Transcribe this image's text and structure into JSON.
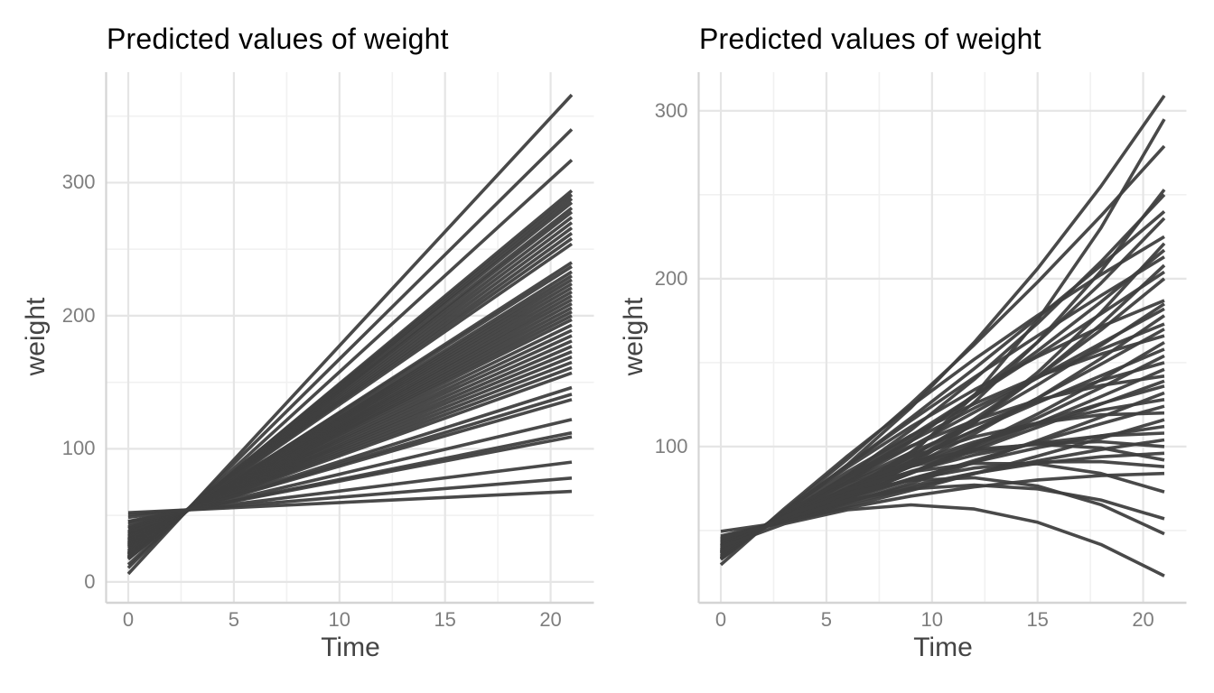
{
  "styles": {
    "background": "#ffffff",
    "line_color": "#3f3f3f",
    "grid_major_color": "#e5e5e5",
    "grid_minor_color": "#f1f1f1",
    "axis_line_color": "#d4d4d4",
    "tick_label_color": "#7e7e7e",
    "axis_title_color": "#444444",
    "title_color": "#000000"
  },
  "chart_data": [
    {
      "type": "line",
      "title": "Predicted values of weight",
      "xlabel": "Time",
      "ylabel": "weight",
      "legend": "none",
      "grid": "on",
      "x_ticks": [
        0,
        5,
        10,
        15,
        20
      ],
      "x_minor": [
        2.5,
        7.5,
        12.5,
        17.5
      ],
      "y_ticks": [
        0,
        100,
        200,
        300
      ],
      "y_minor": [
        50,
        150,
        250,
        350
      ],
      "xlim": [
        -1.05,
        22.05
      ],
      "ylim": [
        -15,
        383
      ],
      "x": [
        0,
        21
      ],
      "series": [
        [
          6,
          366
        ],
        [
          10.5,
          340
        ],
        [
          13,
          317
        ],
        [
          17,
          294
        ],
        [
          18,
          291
        ],
        [
          17.5,
          288
        ],
        [
          19,
          285
        ],
        [
          18.5,
          281
        ],
        [
          20,
          278
        ],
        [
          20.5,
          274
        ],
        [
          21,
          270
        ],
        [
          21.5,
          266
        ],
        [
          22,
          262
        ],
        [
          23,
          258
        ],
        [
          23.5,
          254
        ],
        [
          25,
          240
        ],
        [
          26.5,
          237
        ],
        [
          26,
          233
        ],
        [
          27,
          230
        ],
        [
          27.5,
          227
        ],
        [
          28,
          224
        ],
        [
          28.5,
          221
        ],
        [
          29,
          218
        ],
        [
          29,
          215
        ],
        [
          30,
          212
        ],
        [
          30,
          209
        ],
        [
          31,
          206
        ],
        [
          31,
          203
        ],
        [
          31.5,
          200
        ],
        [
          32,
          197
        ],
        [
          32.5,
          193
        ],
        [
          33,
          189
        ],
        [
          34,
          185
        ],
        [
          34.5,
          181
        ],
        [
          35,
          177
        ],
        [
          36,
          173
        ],
        [
          36.5,
          169
        ],
        [
          37,
          165
        ],
        [
          37.5,
          161
        ],
        [
          38,
          157
        ],
        [
          40,
          146
        ],
        [
          40.5,
          141
        ],
        [
          41.5,
          137
        ],
        [
          43.5,
          122
        ],
        [
          45,
          112
        ],
        [
          45.5,
          109
        ],
        [
          48.5,
          90
        ],
        [
          50.5,
          78
        ],
        [
          52,
          68
        ]
      ]
    },
    {
      "type": "line",
      "title": "Predicted values of weight",
      "xlabel": "Time",
      "ylabel": "weight",
      "legend": "none",
      "grid": "on",
      "x_ticks": [
        0,
        5,
        10,
        15,
        20
      ],
      "x_minor": [
        2.5,
        7.5,
        12.5,
        17.5
      ],
      "y_ticks": [
        100,
        200,
        300
      ],
      "y_minor": [
        50,
        150,
        250
      ],
      "xlim": [
        -1.05,
        22.05
      ],
      "ylim": [
        7.5,
        323
      ],
      "x": [
        0,
        3,
        6,
        9,
        12,
        15,
        18,
        21
      ],
      "series": [
        [
          36.7,
          60.5,
          89.3,
          123.1,
          162.1,
          206.0,
          255.0,
          309
        ],
        [
          49.5,
          54.9,
          70.2,
          95.3,
          130.4,
          175.4,
          230.2,
          295
        ],
        [
          33.2,
          61.8,
          92.6,
          125.6,
          160.7,
          198.0,
          237.4,
          279
        ],
        [
          45.5,
          56.3,
          73.3,
          96.7,
          126.3,
          162.3,
          204.5,
          253
        ],
        [
          38.7,
          59.2,
          82.9,
          109.8,
          140.0,
          173.4,
          210.1,
          250
        ],
        [
          34.3,
          61.0,
          88.6,
          117.1,
          146.4,
          176.7,
          207.8,
          240
        ],
        [
          41.0,
          58.1,
          78.7,
          103.0,
          130.8,
          162.2,
          197.3,
          236
        ],
        [
          29.6,
          62.9,
          94.4,
          124.1,
          152.0,
          178.1,
          202.4,
          225
        ],
        [
          46.8,
          55.5,
          69.6,
          89.0,
          113.9,
          144.2,
          179.8,
          221
        ],
        [
          38.8,
          59.2,
          80.7,
          104.4,
          129.8,
          157.0,
          186.1,
          217
        ],
        [
          33.0,
          61.4,
          88.9,
          115.4,
          141.2,
          166.0,
          189.9,
          213
        ],
        [
          44.8,
          56.3,
          71.6,
          91.0,
          114.3,
          141.6,
          172.8,
          208
        ],
        [
          36.9,
          59.6,
          82.8,
          106.3,
          130.2,
          154.5,
          179.0,
          204
        ],
        [
          42.7,
          57.1,
          74.2,
          94.0,
          116.4,
          141.6,
          169.4,
          200
        ],
        [
          32.7,
          61.3,
          87.6,
          111.8,
          133.8,
          153.6,
          171.4,
          187
        ],
        [
          41.3,
          57.6,
          75.2,
          94.3,
          114.8,
          136.7,
          160.2,
          185
        ],
        [
          38.3,
          58.8,
          79.4,
          99.9,
          120.4,
          140.9,
          161.5,
          182
        ],
        [
          43.8,
          56.5,
          71.3,
          88.3,
          107.5,
          128.8,
          152.4,
          178
        ],
        [
          35.9,
          59.8,
          82.3,
          103.3,
          122.9,
          141.1,
          157.8,
          173
        ],
        [
          41.7,
          57.3,
          73.8,
          91.3,
          109.6,
          128.8,
          149.0,
          170
        ],
        [
          33.7,
          60.7,
          85.0,
          106.6,
          125.5,
          141.7,
          155.1,
          166
        ],
        [
          44.6,
          56.0,
          69.2,
          84.1,
          100.9,
          119.4,
          139.8,
          162
        ],
        [
          40.0,
          57.9,
          75.5,
          92.7,
          109.6,
          126.1,
          142.2,
          158
        ],
        [
          43.8,
          56.3,
          69.9,
          84.5,
          100.3,
          117.1,
          135.1,
          154
        ],
        [
          37.5,
          59.0,
          78.6,
          96.5,
          112.6,
          126.9,
          139.4,
          150
        ],
        [
          43.3,
          56.4,
          70.0,
          84.2,
          98.8,
          114.0,
          129.8,
          146
        ],
        [
          35.0,
          60.0,
          81.7,
          100.3,
          115.6,
          127.7,
          136.4,
          142
        ],
        [
          42.8,
          56.6,
          70.3,
          84.1,
          97.8,
          111.5,
          125.3,
          139
        ],
        [
          40.6,
          57.5,
          73.3,
          88.0,
          101.6,
          114.1,
          125.6,
          136
        ],
        [
          45.3,
          55.5,
          66.5,
          78.1,
          90.5,
          103.6,
          117.5,
          132
        ],
        [
          39.0,
          58.2,
          75.2,
          90.1,
          102.8,
          113.4,
          121.7,
          128
        ],
        [
          43.6,
          56.1,
          68.4,
          80.2,
          91.7,
          102.8,
          113.6,
          124
        ],
        [
          36.4,
          59.2,
          78.3,
          93.9,
          105.8,
          114.1,
          118.9,
          120
        ],
        [
          46.1,
          55.0,
          64.3,
          73.9,
          83.9,
          94.3,
          104.9,
          116
        ],
        [
          42.3,
          56.6,
          69.4,
          80.9,
          90.8,
          99.3,
          106.4,
          112
        ],
        [
          39.8,
          57.7,
          72.8,
          85.2,
          95.0,
          102.0,
          106.4,
          108
        ],
        [
          44.4,
          55.6,
          66.0,
          75.3,
          83.9,
          91.5,
          98.2,
          104
        ],
        [
          37.7,
          58.5,
          75.3,
          88.1,
          97.0,
          101.9,
          102.9,
          100
        ],
        [
          43.2,
          56.1,
          67.3,
          76.6,
          84.2,
          90.0,
          93.9,
          96
        ],
        [
          36.0,
          58.6,
          77.2,
          90.3,
          98.3,
          101.3,
          99.2,
          92
        ],
        [
          40.7,
          57.1,
          70.4,
          80.4,
          87.2,
          90.8,
          91.0,
          88
        ],
        [
          45.3,
          55.1,
          63.5,
          70.5,
          76.0,
          80.1,
          82.7,
          84
        ],
        [
          37.2,
          58.5,
          74.4,
          84.9,
          90.0,
          89.7,
          84.0,
          73
        ],
        [
          41.0,
          56.8,
          68.0,
          74.8,
          77.1,
          74.8,
          68.2,
          57
        ],
        [
          37.7,
          58.1,
          72.2,
          79.9,
          81.4,
          76.5,
          65.4,
          48
        ],
        [
          40.2,
          54.0,
          62.3,
          65.3,
          62.8,
          54.9,
          41.7,
          23
        ]
      ]
    }
  ]
}
